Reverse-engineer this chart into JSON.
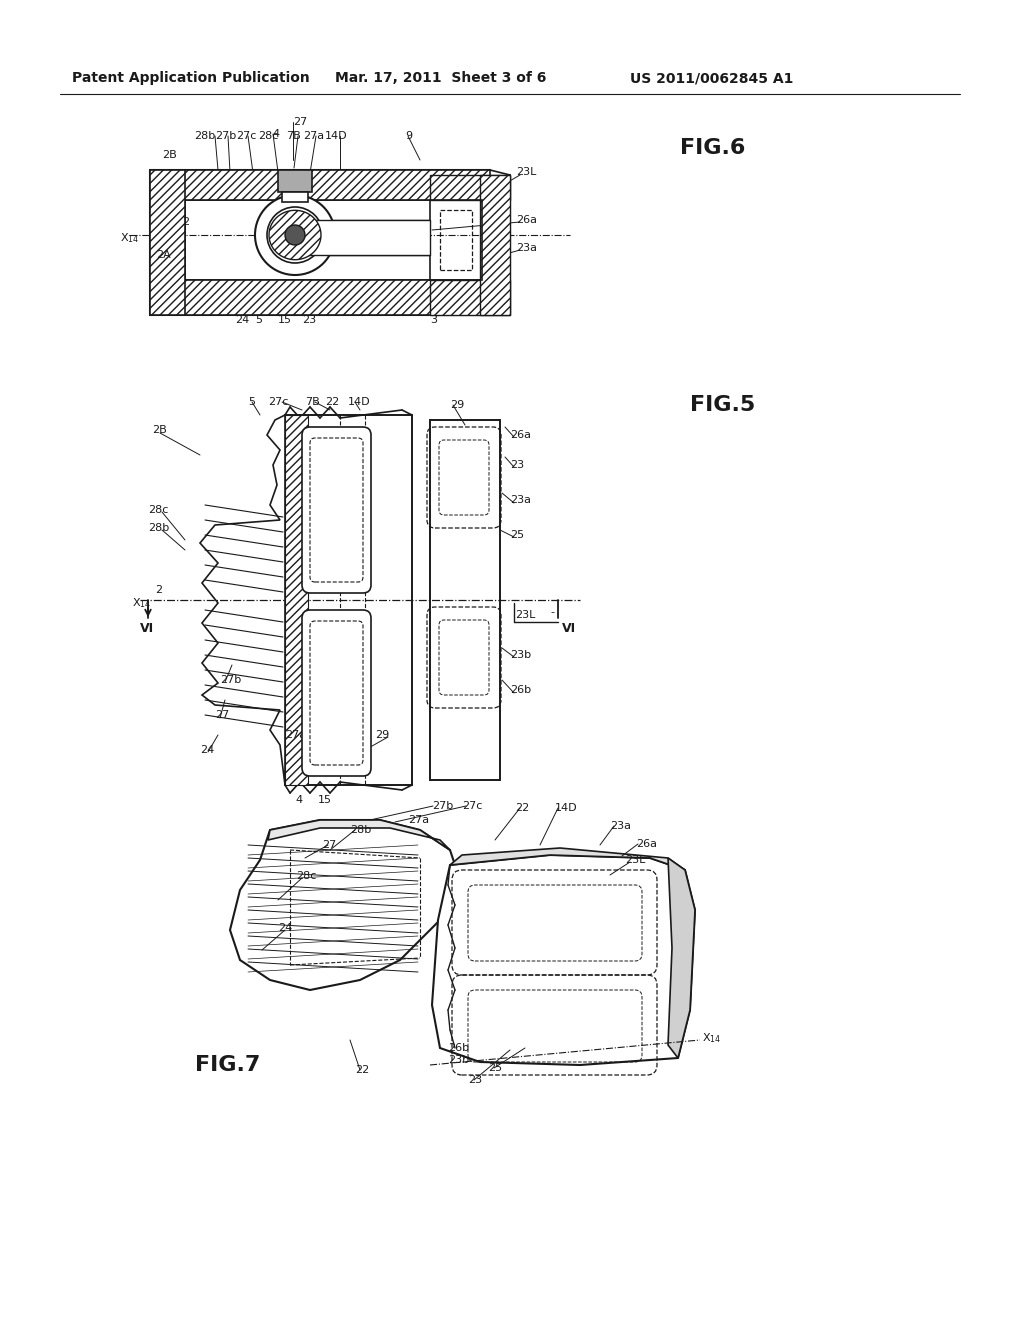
{
  "header_left": "Patent Application Publication",
  "header_mid": "Mar. 17, 2011  Sheet 3 of 6",
  "header_right": "US 2011/0062845 A1",
  "fig6_label": "FIG.6",
  "fig5_label": "FIG.5",
  "fig7_label": "FIG.7",
  "bg_color": "#ffffff",
  "line_color": "#1a1a1a",
  "header_fontsize": 10,
  "label_fontsize": 8,
  "fig_label_fontsize": 16
}
